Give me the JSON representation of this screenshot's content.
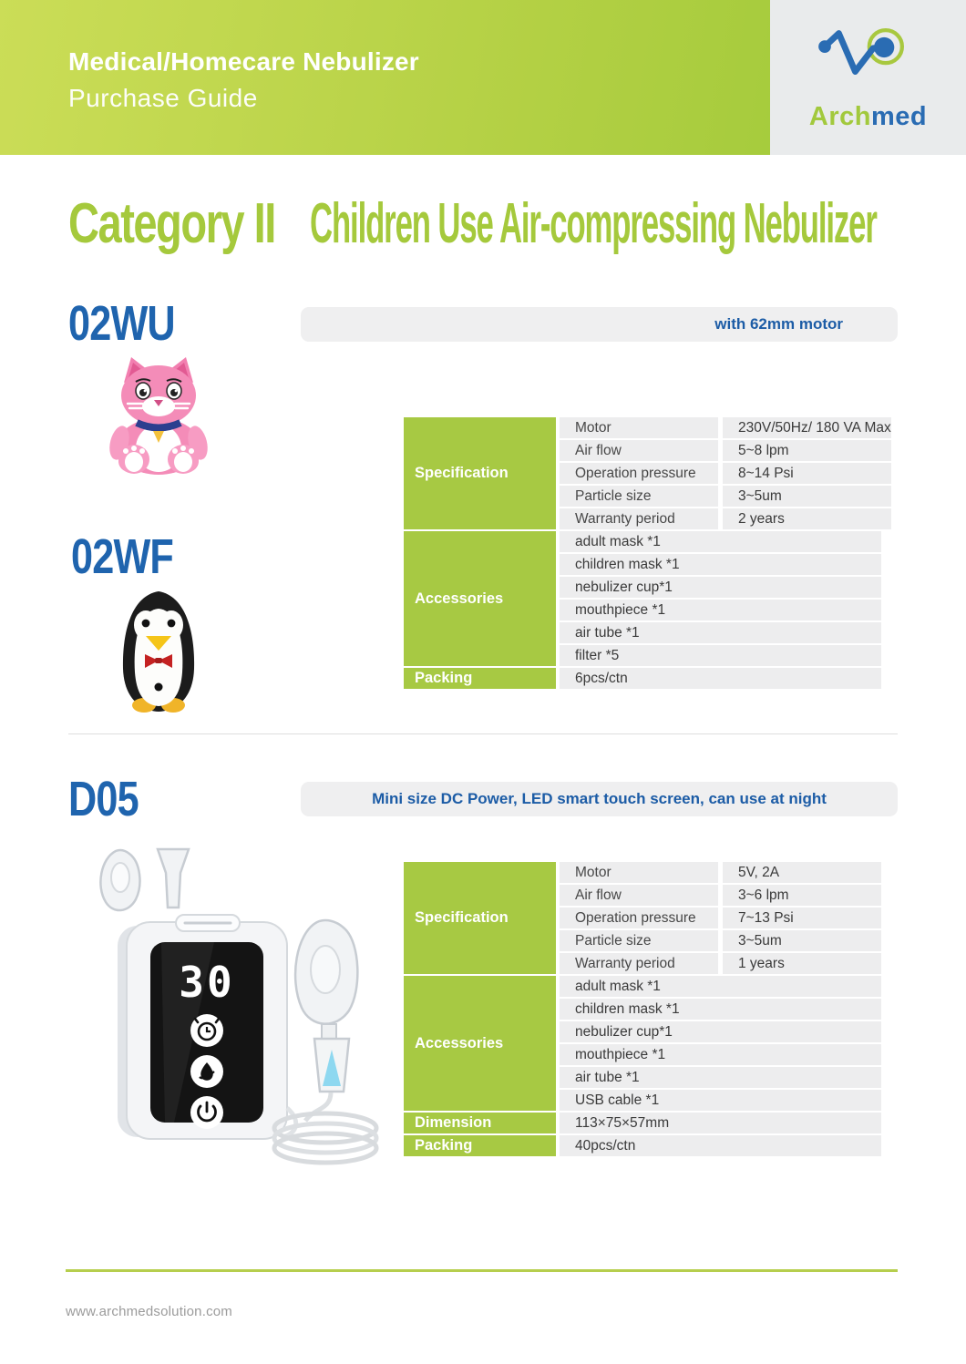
{
  "header": {
    "title": "Medical/Homecare Nebulizer",
    "subtitle": "Purchase Guide",
    "logo_arch": "Arch",
    "logo_med": "med"
  },
  "category": {
    "label": "Category II",
    "title": "Children Use Air-compressing Nebulizer"
  },
  "section1": {
    "models": [
      "02WU",
      "02WF"
    ],
    "banner": "with 62mm motor",
    "table": {
      "spec_label": "Specification",
      "spec_rows": [
        {
          "label": "Motor",
          "value": "230V/50Hz/ 180 VA Max"
        },
        {
          "label": "Air flow",
          "value": "5~8 lpm"
        },
        {
          "label": "Operation pressure",
          "value": "8~14 Psi"
        },
        {
          "label": "Particle size",
          "value": "3~5um"
        },
        {
          "label": "Warranty period",
          "value": "2 years"
        }
      ],
      "acc_label": "Accessories",
      "acc_rows": [
        "adult mask *1",
        "children mask *1",
        "nebulizer cup*1",
        "mouthpiece *1",
        "air tube *1",
        "filter *5"
      ],
      "packing_label": "Packing",
      "packing_value": "6pcs/ctn"
    }
  },
  "section2": {
    "model": "D05",
    "banner": "Mini size DC Power, LED smart touch screen, can use at night",
    "device_screen": "30",
    "device_icons": [
      "alarm-clock",
      "mist",
      "power"
    ],
    "table": {
      "spec_label": "Specification",
      "spec_rows": [
        {
          "label": "Motor",
          "value": "5V, 2A"
        },
        {
          "label": "Air flow",
          "value": "3~6 lpm"
        },
        {
          "label": "Operation pressure",
          "value": "7~13 Psi"
        },
        {
          "label": "Particle size",
          "value": "3~5um"
        },
        {
          "label": "Warranty period",
          "value": "1 years"
        }
      ],
      "acc_label": "Accessories",
      "acc_rows": [
        "adult mask *1",
        "children mask *1",
        "nebulizer cup*1",
        "mouthpiece *1",
        "air tube *1",
        "USB cable *1"
      ],
      "dimension_label": "Dimension",
      "dimension_value": "113×75×57mm",
      "packing_label": "Packing",
      "packing_value": "40pcs/ctn"
    }
  },
  "footer": {
    "website": "www.archmedsolution.com"
  },
  "colors": {
    "green": "#a7c943",
    "category_green": "#a5c93c",
    "title_blue": "#1f64ae",
    "banner_text_blue": "#1c5ca6",
    "header_gradient_start": "#cbdd57",
    "header_gradient_end": "#9cc837",
    "row_gray": "#ededee",
    "logo_block_gray": "#e9ebec"
  }
}
